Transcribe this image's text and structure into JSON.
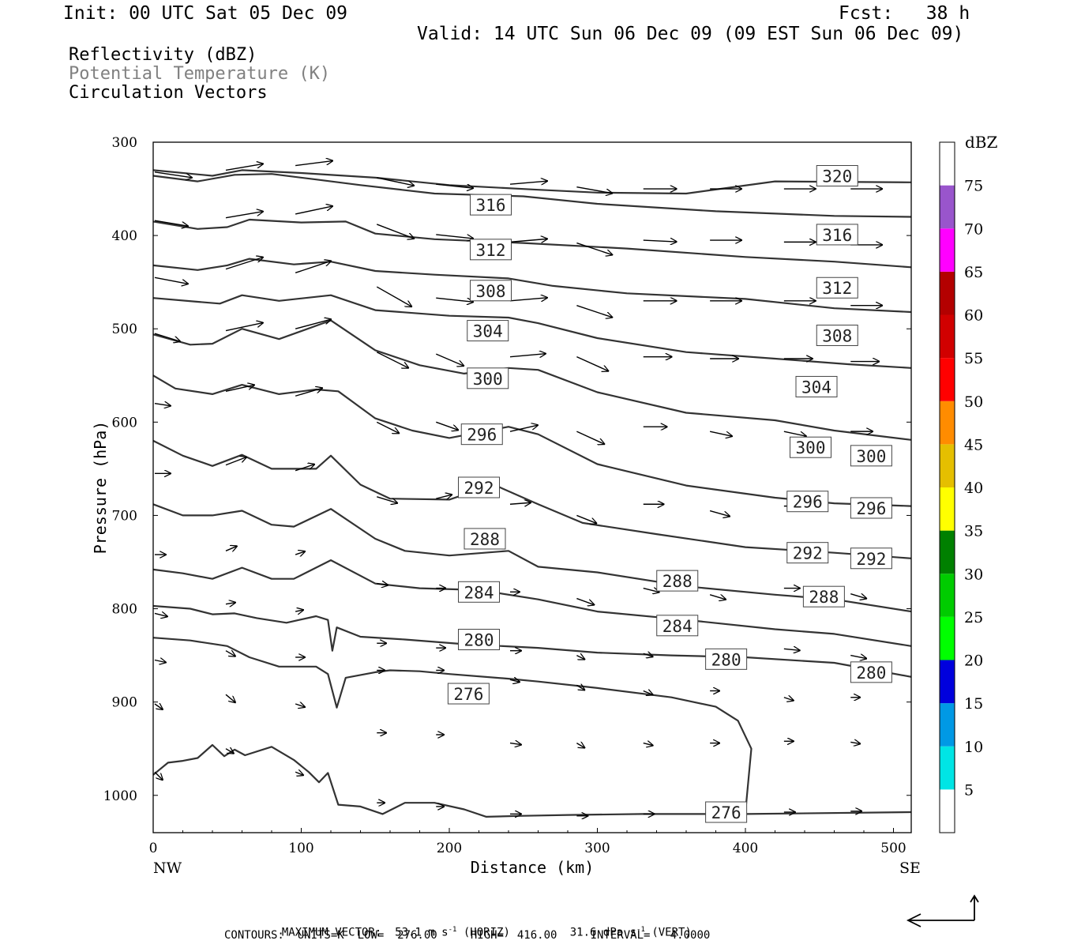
{
  "header": {
    "init": "Init: 00 UTC Sat 05 Dec 09",
    "fcst": "Fcst:   38 h",
    "valid": "Valid: 14 UTC Sun 06 Dec 09 (09 EST Sun 06 Dec 09)",
    "legend": {
      "reflectivity": "Reflectivity (dBZ)",
      "theta": "Potential Temperature (K)",
      "vectors": "Circulation Vectors"
    }
  },
  "footer": {
    "max_vector_prefix": "MAXIMUM VECTOR:",
    "max_vector_horiz": "53.1 m s",
    "horiz_tag": "(HORIZ)",
    "max_vector_vert": "31.6 dPa s",
    "vert_tag": "(VERT)",
    "superscript": "-1",
    "contours": "CONTOURS:  UNITS=K  LOW=  276.00     HIGH=  416.00     INTERVAL=   4.0000"
  },
  "colors": {
    "contour": "#333333",
    "label_text": "#444444",
    "theta_legend": "#808080"
  },
  "chart_data": {
    "type": "cross-section",
    "xlabel": "Distance (km)",
    "ylabel": "Pressure (hPa)",
    "xlim": [
      0,
      512
    ],
    "ylim": [
      1040,
      300
    ],
    "x_ticks": [
      "0",
      "100",
      "200",
      "300",
      "400",
      "500"
    ],
    "y_ticks": [
      "300",
      "400",
      "500",
      "600",
      "700",
      "800",
      "900",
      "1000"
    ],
    "x_end_labels": {
      "left": "NW",
      "right": "SE"
    },
    "colorbar": {
      "unit": "dBZ",
      "levels": [
        "5",
        "10",
        "15",
        "20",
        "25",
        "30",
        "35",
        "40",
        "45",
        "50",
        "55",
        "60",
        "65",
        "70",
        "75"
      ],
      "colors": [
        "#ffffff",
        "#00e5e5",
        "#0099e5",
        "#0000dd",
        "#00ff00",
        "#00cc00",
        "#008000",
        "#ffff00",
        "#e5bf00",
        "#ff8c00",
        "#ff0000",
        "#d10000",
        "#b30000",
        "#ff00ff",
        "#9955cc",
        "#ffffff"
      ]
    },
    "contour_labels": [
      {
        "t": "320",
        "x": 462,
        "p": 336
      },
      {
        "t": "316",
        "x": 228,
        "p": 367
      },
      {
        "t": "316",
        "x": 462,
        "p": 399
      },
      {
        "t": "312",
        "x": 228,
        "p": 415
      },
      {
        "t": "312",
        "x": 462,
        "p": 456
      },
      {
        "t": "308",
        "x": 228,
        "p": 459
      },
      {
        "t": "308",
        "x": 462,
        "p": 507
      },
      {
        "t": "304",
        "x": 226,
        "p": 502
      },
      {
        "t": "304",
        "x": 448,
        "p": 562
      },
      {
        "t": "300",
        "x": 226,
        "p": 553
      },
      {
        "t": "300",
        "x": 444,
        "p": 627
      },
      {
        "t": "300",
        "x": 485,
        "p": 636
      },
      {
        "t": "296",
        "x": 222,
        "p": 613
      },
      {
        "t": "296",
        "x": 442,
        "p": 685
      },
      {
        "t": "296",
        "x": 485,
        "p": 692
      },
      {
        "t": "292",
        "x": 220,
        "p": 670
      },
      {
        "t": "292",
        "x": 442,
        "p": 740
      },
      {
        "t": "292",
        "x": 485,
        "p": 746
      },
      {
        "t": "288",
        "x": 224,
        "p": 725
      },
      {
        "t": "288",
        "x": 354,
        "p": 770
      },
      {
        "t": "288",
        "x": 453,
        "p": 787
      },
      {
        "t": "284",
        "x": 220,
        "p": 782
      },
      {
        "t": "284",
        "x": 354,
        "p": 818
      },
      {
        "t": "280",
        "x": 220,
        "p": 833
      },
      {
        "t": "280",
        "x": 387,
        "p": 854
      },
      {
        "t": "280",
        "x": 485,
        "p": 868
      },
      {
        "t": "276",
        "x": 213,
        "p": 891
      },
      {
        "t": "276",
        "x": 387,
        "p": 1018
      }
    ]
  }
}
